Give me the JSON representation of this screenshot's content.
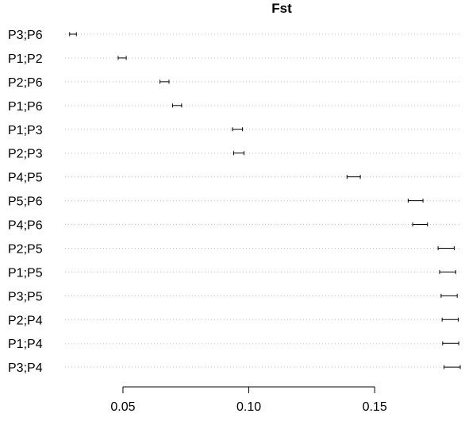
{
  "chart_data": {
    "type": "scatter",
    "subtype": "interval-dot-plot",
    "title": "Fst",
    "xlabel": "",
    "ylabel": "",
    "xlim": [
      0.027,
      0.184
    ],
    "x_ticks": [
      0.05,
      0.1,
      0.15
    ],
    "x_tick_labels": [
      "0.05",
      "0.10",
      "0.15"
    ],
    "grid": "dotted horizontal guide lines",
    "legend": "none",
    "colors": {
      "line": "#000000",
      "guide": "#bbbbbb"
    },
    "categories": [
      "P3;P6",
      "P1;P2",
      "P2;P6",
      "P1;P6",
      "P1;P3",
      "P2;P3",
      "P4;P5",
      "P5;P6",
      "P4;P6",
      "P2;P5",
      "P1;P5",
      "P3;P5",
      "P2;P4",
      "P1;P4",
      "P3;P4"
    ],
    "intervals": [
      {
        "label": "P3;P6",
        "low": 0.0288,
        "high": 0.0315
      },
      {
        "label": "P1;P2",
        "low": 0.0481,
        "high": 0.0513
      },
      {
        "label": "P2;P6",
        "low": 0.0647,
        "high": 0.0683
      },
      {
        "label": "P1;P6",
        "low": 0.0697,
        "high": 0.0733
      },
      {
        "label": "P1;P3",
        "low": 0.0935,
        "high": 0.0975
      },
      {
        "label": "P2;P3",
        "low": 0.094,
        "high": 0.0981
      },
      {
        "label": "P4;P5",
        "low": 0.139,
        "high": 0.1443
      },
      {
        "label": "P5;P6",
        "low": 0.1633,
        "high": 0.1692
      },
      {
        "label": "P4;P6",
        "low": 0.1651,
        "high": 0.171
      },
      {
        "label": "P2;P5",
        "low": 0.1752,
        "high": 0.1816
      },
      {
        "label": "P1;P5",
        "low": 0.1758,
        "high": 0.1822
      },
      {
        "label": "P3;P5",
        "low": 0.1764,
        "high": 0.1828
      },
      {
        "label": "P2;P4",
        "low": 0.1768,
        "high": 0.1832
      },
      {
        "label": "P1;P4",
        "low": 0.177,
        "high": 0.1834
      },
      {
        "label": "P3;P4",
        "low": 0.1776,
        "high": 0.184
      }
    ]
  }
}
